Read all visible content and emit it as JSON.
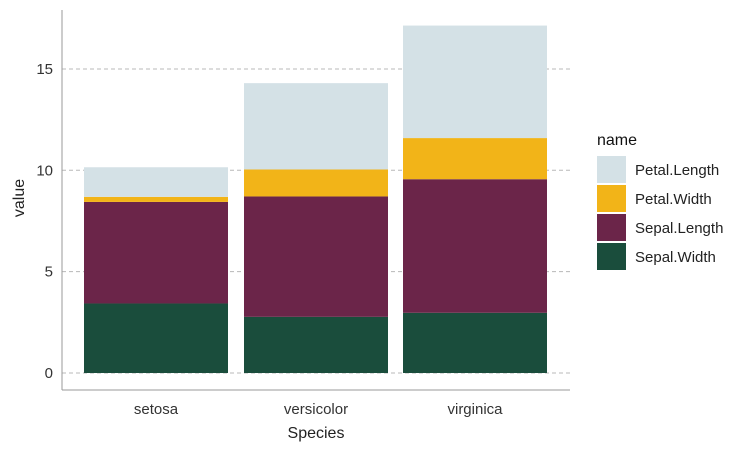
{
  "chart_data": {
    "type": "bar",
    "stacked": true,
    "categories": [
      "setosa",
      "versicolor",
      "virginica"
    ],
    "xlabel": "Species",
    "ylabel": "value",
    "ylim": [
      0,
      17.6
    ],
    "yticks": [
      0,
      5,
      10,
      15
    ],
    "grid": "horizontal-dashed",
    "legend": {
      "title": "name",
      "position": "right"
    },
    "series": [
      {
        "name": "Sepal.Width",
        "color": "#1a4d3c",
        "values": [
          3.43,
          2.77,
          2.97
        ]
      },
      {
        "name": "Sepal.Length",
        "color": "#6b2549",
        "values": [
          5.01,
          5.94,
          6.59
        ]
      },
      {
        "name": "Petal.Width",
        "color": "#f2b418",
        "values": [
          0.25,
          1.33,
          2.03
        ]
      },
      {
        "name": "Petal.Length",
        "color": "#d4e1e6",
        "values": [
          1.46,
          4.26,
          5.55
        ]
      }
    ]
  }
}
